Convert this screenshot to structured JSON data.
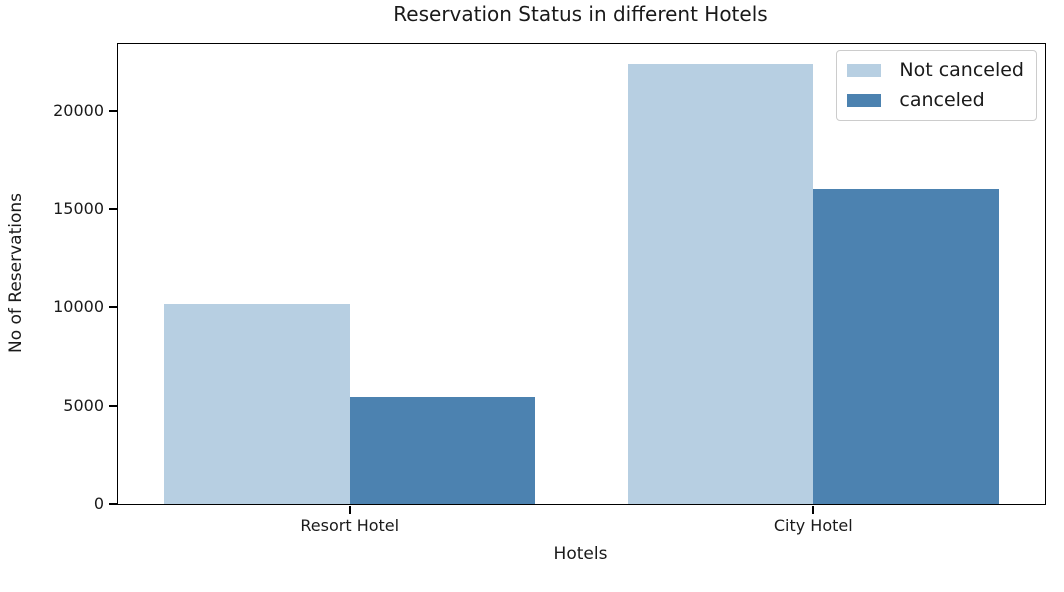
{
  "window": {
    "background": "#ffffff"
  },
  "chart_data": {
    "type": "bar",
    "title": "Reservation Status in different Hotels",
    "xlabel": "Hotels",
    "ylabel": "No of Reservations",
    "categories": [
      "Resort Hotel",
      "City Hotel"
    ],
    "series": [
      {
        "name": "Not canceled",
        "color": "#b7cfe2",
        "values": [
          10200,
          22400
        ]
      },
      {
        "name": "canceled",
        "color": "#4c82b0",
        "values": [
          5450,
          16000
        ]
      }
    ],
    "yticks": [
      0,
      5000,
      10000,
      15000,
      20000
    ],
    "ylim": [
      0,
      23400
    ],
    "grid": false,
    "legend_position": "upper right",
    "axis_color": "#000000",
    "text_color": "#1a1a1a"
  }
}
